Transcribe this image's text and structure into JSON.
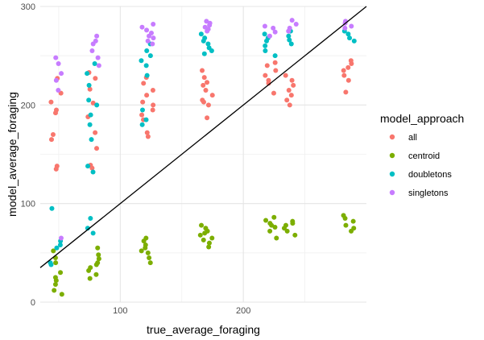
{
  "chart_data": {
    "type": "scatter",
    "title": "",
    "xlabel": "true_average_foraging",
    "ylabel": "model_average_foraging",
    "xlim": [
      35,
      300
    ],
    "ylim": [
      0,
      300
    ],
    "x_ticks": [
      100,
      200
    ],
    "y_ticks": [
      0,
      100,
      200,
      300
    ],
    "grid": true,
    "legend": {
      "title": "model_approach",
      "placement": "right"
    },
    "reference_line": {
      "intercept": 0,
      "slope": 1,
      "color": "#000000"
    },
    "jitter_width": 5,
    "x_groups": [
      48,
      78,
      122,
      170,
      222,
      238,
      286
    ],
    "series": [
      {
        "name": "all",
        "color": "#F8766D",
        "groups": [
          [
            48,
            [
              135,
              138,
              165,
              170,
              192,
              195,
              203,
              212,
              227
            ]
          ],
          [
            78,
            [
              136,
              139,
              156,
              172,
              188,
              202,
              216,
              227,
              233
            ]
          ],
          [
            122,
            [
              168,
              172,
              185,
              190,
              195,
              200,
              203,
              210,
              215,
              222,
              228
            ]
          ],
          [
            170,
            [
              187,
              200,
              203,
              205,
              210,
              215,
              220,
              223,
              228,
              235
            ]
          ],
          [
            222,
            [
              212,
              222,
              225,
              230,
              235,
              240,
              243
            ]
          ],
          [
            238,
            [
              200,
              205,
              210,
              215,
              220,
              225,
              230
            ]
          ],
          [
            286,
            [
              213,
              225,
              230,
              235,
              238,
              242,
              245
            ]
          ]
        ]
      },
      {
        "name": "centroid",
        "color": "#7CAE00",
        "groups": [
          [
            48,
            [
              8,
              12,
              18,
              22,
              25,
              30,
              40,
              45,
              52
            ]
          ],
          [
            78,
            [
              24,
              28,
              32,
              35,
              38,
              40,
              44,
              48,
              55
            ]
          ],
          [
            122,
            [
              40,
              45,
              50,
              52,
              55,
              58,
              62,
              65
            ]
          ],
          [
            170,
            [
              56,
              60,
              63,
              65,
              68,
              70,
              72,
              75,
              78
            ]
          ],
          [
            222,
            [
              65,
              72,
              76,
              78,
              80,
              83,
              86
            ]
          ],
          [
            238,
            [
              68,
              72,
              75,
              78,
              80,
              82
            ]
          ],
          [
            286,
            [
              72,
              75,
              78,
              82,
              85,
              88
            ]
          ]
        ]
      },
      {
        "name": "doubletons",
        "color": "#00BFC4",
        "groups": [
          [
            48,
            [
              38,
              40,
              55,
              58,
              62,
              95
            ]
          ],
          [
            78,
            [
              70,
              75,
              85,
              132,
              138,
              165,
              180,
              190,
              200,
              205,
              220,
              232,
              242
            ]
          ],
          [
            122,
            [
              180,
              185,
              195,
              230,
              240,
              245,
              250,
              255,
              262
            ]
          ],
          [
            170,
            [
              252,
              255,
              258,
              262,
              265,
              268,
              272
            ]
          ],
          [
            222,
            [
              250,
              255,
              260,
              265,
              268,
              272
            ]
          ],
          [
            238,
            [
              262,
              266,
              270,
              275
            ]
          ],
          [
            286,
            [
              265,
              268,
              272,
              275
            ]
          ]
        ]
      },
      {
        "name": "singletons",
        "color": "#C77CFF",
        "groups": [
          [
            48,
            [
              65,
              215,
              225,
              232,
              242,
              248
            ]
          ],
          [
            78,
            [
              240,
              248,
              255,
              262,
              265,
              270
            ]
          ],
          [
            122,
            [
              262,
              265,
              268,
              270,
              273,
              276,
              279,
              282
            ]
          ],
          [
            170,
            [
              275,
              277,
              279,
              281,
              283,
              285
            ]
          ],
          [
            222,
            [
              270,
              274,
              278,
              280
            ]
          ],
          [
            238,
            [
              275,
              278,
              282,
              286
            ]
          ],
          [
            286,
            [
              278,
              280,
              283,
              285
            ]
          ]
        ]
      }
    ]
  }
}
